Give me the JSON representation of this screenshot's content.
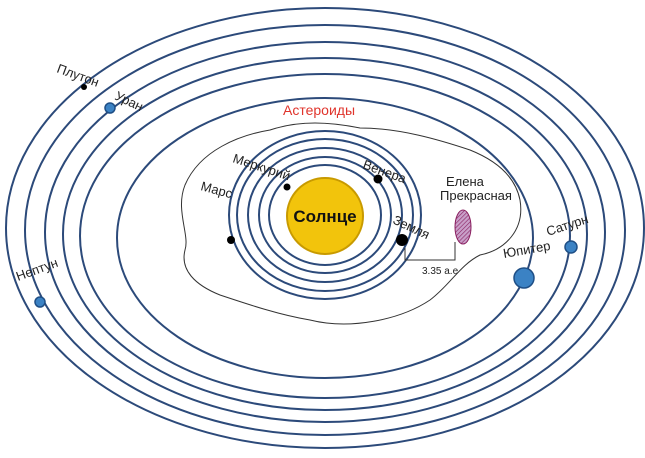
{
  "sun": {
    "label": "Солнце"
  },
  "belt": {
    "label": "Астероиды"
  },
  "planets": [
    {
      "label": "Меркурий"
    },
    {
      "label": "Венера"
    },
    {
      "label": "Марс"
    },
    {
      "label": "Земля"
    },
    {
      "label": "Юпитер"
    },
    {
      "label": "Сатурн"
    },
    {
      "label": "Уран"
    },
    {
      "label": "Нептун"
    },
    {
      "label": "Плутон"
    }
  ],
  "comet": {
    "label_lines": [
      "Елена",
      "Прекрасная"
    ]
  },
  "distance": {
    "label": "3.35 а.е"
  }
}
